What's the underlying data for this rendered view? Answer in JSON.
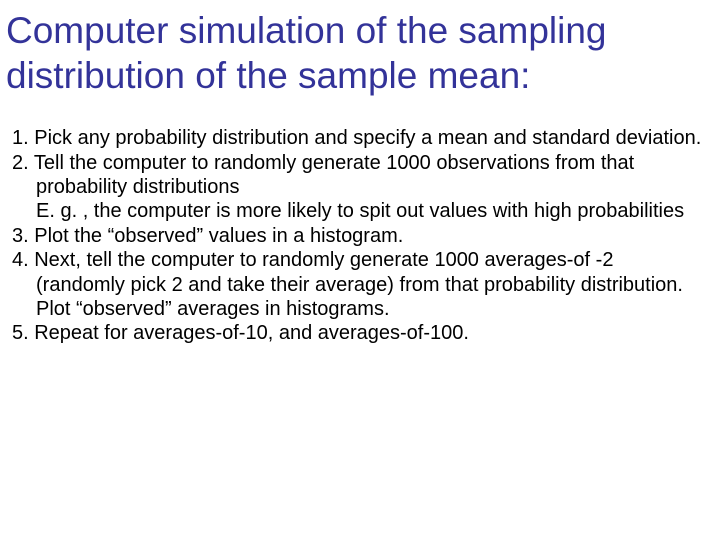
{
  "title_color": "#333399",
  "body_color": "#000000",
  "background_color": "#ffffff",
  "title_fontsize": 37,
  "body_fontsize": 20,
  "title": "Computer simulation of the sampling distribution of the sample mean:",
  "items": {
    "i1": "1. Pick any probability distribution and specify a mean and standard deviation.",
    "i2": "2. Tell the computer to randomly generate 1000 observations from that probability distributions",
    "i2sub": "E. g. , the computer is more likely to spit out values with high probabilities",
    "i3": "3. Plot the “observed” values in a histogram.",
    "i4": "4. Next, tell the computer to randomly generate 1000 averages-of -2 (randomly pick 2 and take their average) from that probability distribution. Plot “observed” averages in histograms.",
    "i5": "5. Repeat for averages-of-10, and averages-of-100."
  }
}
